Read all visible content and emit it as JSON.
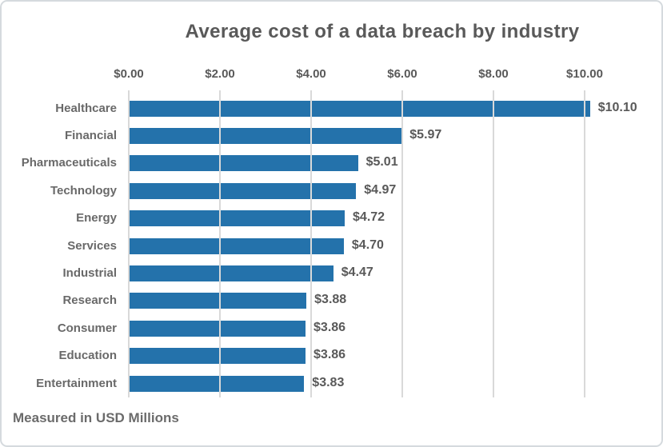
{
  "chart_data": {
    "type": "bar",
    "orientation": "horizontal",
    "title": "Average cost of a data breach by industry",
    "footnote": "Measured in USD Millions",
    "categories": [
      "Healthcare",
      "Financial",
      "Pharmaceuticals",
      "Technology",
      "Energy",
      "Services",
      "Industrial",
      "Research",
      "Consumer",
      "Education",
      "Entertainment"
    ],
    "values": [
      10.1,
      5.97,
      5.01,
      4.97,
      4.72,
      4.7,
      4.47,
      3.88,
      3.86,
      3.86,
      3.83
    ],
    "value_labels": [
      "$10.10",
      "$5.97",
      "$5.01",
      "$4.97",
      "$4.72",
      "$4.70",
      "$4.47",
      "$3.88",
      "$3.86",
      "$3.86",
      "$3.83"
    ],
    "x_tick_values": [
      0,
      2,
      4,
      6,
      8,
      10
    ],
    "x_tick_labels": [
      "$0.00",
      "$2.00",
      "$4.00",
      "$6.00",
      "$8.00",
      "$10.00"
    ],
    "xlim": [
      0,
      11.1
    ],
    "grid": "vertical-over-bars",
    "legend": "none",
    "colors": {
      "bar": "#2472ab",
      "gridline": "#d9d9d9",
      "title_text": "#595959",
      "tick_text": "#595959",
      "category_text": "#696969",
      "value_text": "#595959",
      "footnote_text": "#6b6b6b",
      "card_border": "#d5dade",
      "background": "#ffffff"
    }
  }
}
